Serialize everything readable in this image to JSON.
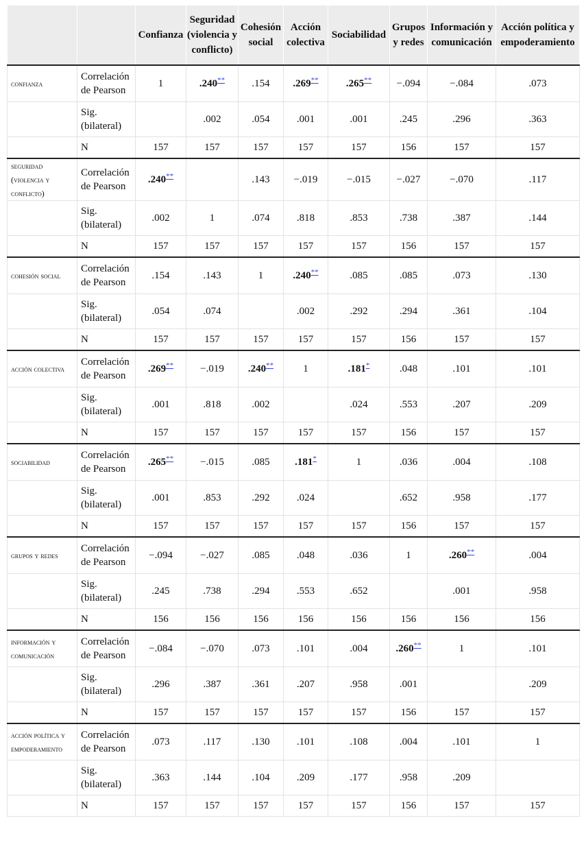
{
  "table": {
    "columns": [
      "Confianza",
      "Seguridad (violencia y conflicto)",
      "Cohesión social",
      "Acción colectiva",
      "Sociabilidad",
      "Grupos y redes",
      "Información y comunicación",
      "Acción política y empoderamiento"
    ],
    "stat_labels": [
      "Correlación de Pearson",
      "Sig. (bilateral)",
      "N"
    ],
    "groups": [
      {
        "name": "confianza",
        "rows": [
          [
            "1",
            {
              "text": ".240",
              "sig": "**"
            },
            ".154",
            {
              "text": ".269",
              "sig": "**"
            },
            {
              "text": ".265",
              "sig": "**"
            },
            "−.094",
            "−.084",
            ".073"
          ],
          [
            null,
            ".002",
            ".054",
            ".001",
            ".001",
            ".245",
            ".296",
            ".363"
          ],
          [
            157,
            157,
            157,
            157,
            157,
            156,
            157,
            157
          ]
        ]
      },
      {
        "name": "seguridad (violencia y conflicto)",
        "rows": [
          [
            {
              "text": ".240",
              "sig": "**"
            },
            null,
            ".143",
            "−.019",
            "−.015",
            "−.027",
            "−.070",
            ".117"
          ],
          [
            ".002",
            "1",
            ".074",
            ".818",
            ".853",
            ".738",
            ".387",
            ".144"
          ],
          [
            157,
            157,
            157,
            157,
            157,
            156,
            157,
            157
          ]
        ]
      },
      {
        "name": "cohesión social",
        "rows": [
          [
            ".154",
            ".143",
            "1",
            {
              "text": ".240",
              "sig": "**"
            },
            ".085",
            ".085",
            ".073",
            ".130"
          ],
          [
            ".054",
            ".074",
            null,
            ".002",
            ".292",
            ".294",
            ".361",
            ".104"
          ],
          [
            157,
            157,
            157,
            157,
            157,
            156,
            157,
            157
          ]
        ]
      },
      {
        "name": "acción colectiva",
        "rows": [
          [
            {
              "text": ".269",
              "sig": "**"
            },
            "−.019",
            {
              "text": ".240",
              "sig": "**"
            },
            "1",
            {
              "text": ".181",
              "sig": "*"
            },
            ".048",
            ".101",
            ".101"
          ],
          [
            ".001",
            ".818",
            ".002",
            null,
            ".024",
            ".553",
            ".207",
            ".209"
          ],
          [
            157,
            157,
            157,
            157,
            157,
            156,
            157,
            157
          ]
        ]
      },
      {
        "name": "sociabilidad",
        "rows": [
          [
            {
              "text": ".265",
              "sig": "**"
            },
            "−.015",
            ".085",
            {
              "text": ".181",
              "sig": "*"
            },
            "1",
            ".036",
            ".004",
            ".108"
          ],
          [
            ".001",
            ".853",
            ".292",
            ".024",
            null,
            ".652",
            ".958",
            ".177"
          ],
          [
            157,
            157,
            157,
            157,
            157,
            156,
            157,
            157
          ]
        ]
      },
      {
        "name": "grupos y redes",
        "rows": [
          [
            "−.094",
            "−.027",
            ".085",
            ".048",
            ".036",
            "1",
            {
              "text": ".260",
              "sig": "**"
            },
            ".004"
          ],
          [
            ".245",
            ".738",
            ".294",
            ".553",
            ".652",
            null,
            ".001",
            ".958"
          ],
          [
            156,
            156,
            156,
            156,
            156,
            156,
            156,
            156
          ]
        ]
      },
      {
        "name": "información y comunicación",
        "rows": [
          [
            "−.084",
            "−.070",
            ".073",
            ".101",
            ".004",
            {
              "text": ".260",
              "sig": "**"
            },
            "1",
            ".101"
          ],
          [
            ".296",
            ".387",
            ".361",
            ".207",
            ".958",
            ".001",
            null,
            ".209"
          ],
          [
            157,
            157,
            157,
            157,
            157,
            156,
            157,
            157
          ]
        ]
      },
      {
        "name": "acción política y empoderamiento",
        "rows": [
          [
            ".073",
            ".117",
            ".130",
            ".101",
            ".108",
            ".004",
            ".101",
            "1"
          ],
          [
            ".363",
            ".144",
            ".104",
            ".209",
            ".177",
            ".958",
            ".209",
            null
          ],
          [
            157,
            157,
            157,
            157,
            157,
            156,
            157,
            157
          ]
        ]
      }
    ]
  }
}
